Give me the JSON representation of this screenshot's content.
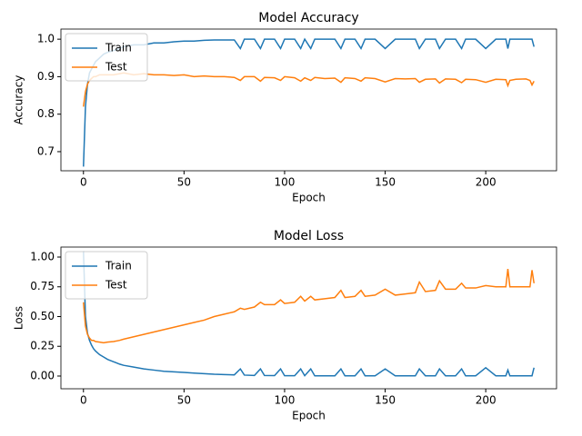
{
  "chart_data": [
    {
      "type": "line",
      "title": "Model Accuracy",
      "x_label": "Epoch",
      "y_label": "Accuracy",
      "legend": "upper left",
      "x": [
        0,
        1,
        2,
        3,
        4,
        5,
        6,
        8,
        10,
        12,
        15,
        18,
        20,
        25,
        30,
        35,
        40,
        45,
        50,
        55,
        60,
        65,
        70,
        75,
        78,
        80,
        85,
        88,
        90,
        95,
        98,
        100,
        105,
        108,
        110,
        113,
        115,
        120,
        125,
        128,
        130,
        135,
        138,
        140,
        145,
        150,
        155,
        160,
        165,
        167,
        170,
        175,
        177,
        180,
        185,
        188,
        190,
        195,
        200,
        205,
        210,
        211,
        212,
        215,
        220,
        222,
        223,
        224
      ],
      "xlim": [
        -11.2,
        235.2
      ],
      "xticks": [
        0,
        50,
        100,
        150,
        200
      ],
      "ylim": [
        0.649,
        1.027
      ],
      "yticks": [
        0.7,
        0.8,
        0.9,
        {
          "value": 1,
          "label": "1.0"
        }
      ],
      "series": [
        {
          "name": "Train",
          "color": "#1f77b4",
          "values": [
            0.66,
            0.82,
            0.88,
            0.91,
            0.92,
            0.93,
            0.94,
            0.95,
            0.96,
            0.965,
            0.97,
            0.975,
            0.98,
            0.985,
            0.985,
            0.99,
            0.99,
            0.993,
            0.995,
            0.995,
            0.997,
            0.998,
            0.998,
            0.998,
            0.975,
            1.0,
            1.0,
            0.975,
            1.0,
            1.0,
            0.975,
            1.0,
            1.0,
            0.975,
            1.0,
            0.975,
            1.0,
            1.0,
            1.0,
            0.975,
            1.0,
            1.0,
            0.975,
            1.0,
            1.0,
            0.975,
            1.0,
            1.0,
            1.0,
            0.975,
            1.0,
            1.0,
            0.975,
            1.0,
            1.0,
            0.975,
            1.0,
            1.0,
            0.975,
            1.0,
            1.0,
            0.975,
            1.0,
            1.0,
            1.0,
            1.0,
            1.0,
            0.98
          ]
        },
        {
          "name": "Test",
          "color": "#ff7f0e",
          "values": [
            0.82,
            0.86,
            0.88,
            0.89,
            0.895,
            0.9,
            0.9,
            0.905,
            0.905,
            0.905,
            0.905,
            0.908,
            0.91,
            0.905,
            0.908,
            0.905,
            0.905,
            0.903,
            0.905,
            0.9,
            0.902,
            0.9,
            0.9,
            0.898,
            0.89,
            0.9,
            0.9,
            0.888,
            0.898,
            0.897,
            0.89,
            0.9,
            0.897,
            0.888,
            0.897,
            0.89,
            0.898,
            0.895,
            0.896,
            0.885,
            0.897,
            0.895,
            0.888,
            0.897,
            0.895,
            0.886,
            0.895,
            0.894,
            0.895,
            0.885,
            0.893,
            0.894,
            0.883,
            0.894,
            0.893,
            0.884,
            0.893,
            0.892,
            0.885,
            0.893,
            0.892,
            0.876,
            0.89,
            0.893,
            0.894,
            0.89,
            0.878,
            0.888
          ]
        }
      ]
    },
    {
      "type": "line",
      "title": "Model Loss",
      "x_label": "Epoch",
      "y_label": "Loss",
      "legend": "upper left",
      "x": [
        0,
        1,
        2,
        3,
        4,
        5,
        6,
        8,
        10,
        12,
        15,
        18,
        20,
        25,
        30,
        35,
        40,
        45,
        50,
        55,
        60,
        65,
        70,
        75,
        78,
        80,
        85,
        88,
        90,
        95,
        98,
        100,
        105,
        108,
        110,
        113,
        115,
        120,
        125,
        128,
        130,
        135,
        138,
        140,
        145,
        150,
        155,
        160,
        165,
        167,
        170,
        175,
        177,
        180,
        185,
        188,
        190,
        195,
        200,
        205,
        210,
        211,
        212,
        215,
        220,
        222,
        223,
        224
      ],
      "xlim": [
        -11.2,
        235.2
      ],
      "xticks": [
        0,
        50,
        100,
        150,
        200
      ],
      "ylim": [
        -0.107,
        1.084
      ],
      "yticks": [
        {
          "value": 0,
          "label": "0.00"
        },
        0.25,
        {
          "value": 0.5,
          "label": "0.50"
        },
        0.75,
        {
          "value": 1,
          "label": "1.00"
        }
      ],
      "series": [
        {
          "name": "Train",
          "color": "#1f77b4",
          "values": [
            1.05,
            0.5,
            0.36,
            0.3,
            0.26,
            0.23,
            0.21,
            0.18,
            0.16,
            0.14,
            0.12,
            0.1,
            0.09,
            0.075,
            0.06,
            0.05,
            0.04,
            0.035,
            0.03,
            0.025,
            0.02,
            0.015,
            0.012,
            0.01,
            0.06,
            0.008,
            0.005,
            0.06,
            0.005,
            0.004,
            0.06,
            0.003,
            0.003,
            0.06,
            0.003,
            0.06,
            0.002,
            0.002,
            0.002,
            0.06,
            0.002,
            0.002,
            0.06,
            0.002,
            0.002,
            0.06,
            0.002,
            0.002,
            0.002,
            0.06,
            0.002,
            0.002,
            0.06,
            0.002,
            0.002,
            0.06,
            0.002,
            0.002,
            0.07,
            0.002,
            0.002,
            0.05,
            0.002,
            0.002,
            0.002,
            0.002,
            0.002,
            0.07
          ]
        },
        {
          "name": "Test",
          "color": "#ff7f0e",
          "values": [
            0.62,
            0.42,
            0.35,
            0.32,
            0.3,
            0.3,
            0.29,
            0.285,
            0.28,
            0.285,
            0.29,
            0.3,
            0.31,
            0.33,
            0.35,
            0.37,
            0.39,
            0.41,
            0.43,
            0.45,
            0.47,
            0.5,
            0.52,
            0.54,
            0.57,
            0.56,
            0.58,
            0.62,
            0.6,
            0.6,
            0.64,
            0.61,
            0.62,
            0.67,
            0.63,
            0.67,
            0.64,
            0.65,
            0.66,
            0.72,
            0.66,
            0.67,
            0.72,
            0.67,
            0.68,
            0.73,
            0.68,
            0.69,
            0.7,
            0.79,
            0.71,
            0.72,
            0.8,
            0.73,
            0.73,
            0.78,
            0.74,
            0.74,
            0.76,
            0.75,
            0.75,
            0.9,
            0.75,
            0.75,
            0.75,
            0.75,
            0.89,
            0.78
          ]
        }
      ]
    }
  ]
}
